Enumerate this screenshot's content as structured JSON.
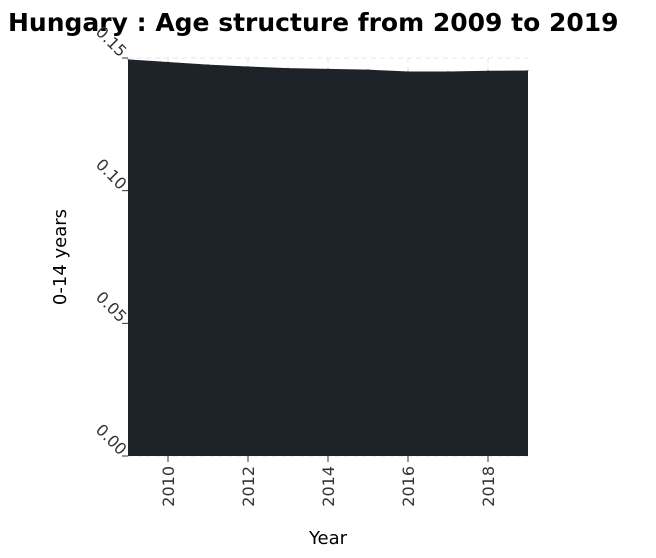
{
  "chart_data": {
    "type": "area",
    "title": "Hungary : Age structure from 2009 to 2019",
    "xlabel": "Year",
    "ylabel": "0-14 years",
    "xlim": [
      2009,
      2019
    ],
    "ylim": [
      0,
      0.15
    ],
    "x_ticks": [
      2010,
      2012,
      2014,
      2016,
      2018
    ],
    "y_ticks": [
      "0.00",
      "0.05",
      "0.10",
      "0.15"
    ],
    "grid": true,
    "fill_color": "#1d2329",
    "series": [
      {
        "x": [
          2009,
          2010,
          2011,
          2012,
          2013,
          2014,
          2015,
          2016,
          2017,
          2018,
          2019
        ],
        "values": [
          0.1495,
          0.1485,
          0.1475,
          0.1468,
          0.1462,
          0.1459,
          0.1456,
          0.1449,
          0.1449,
          0.1452,
          0.1453
        ]
      }
    ]
  }
}
